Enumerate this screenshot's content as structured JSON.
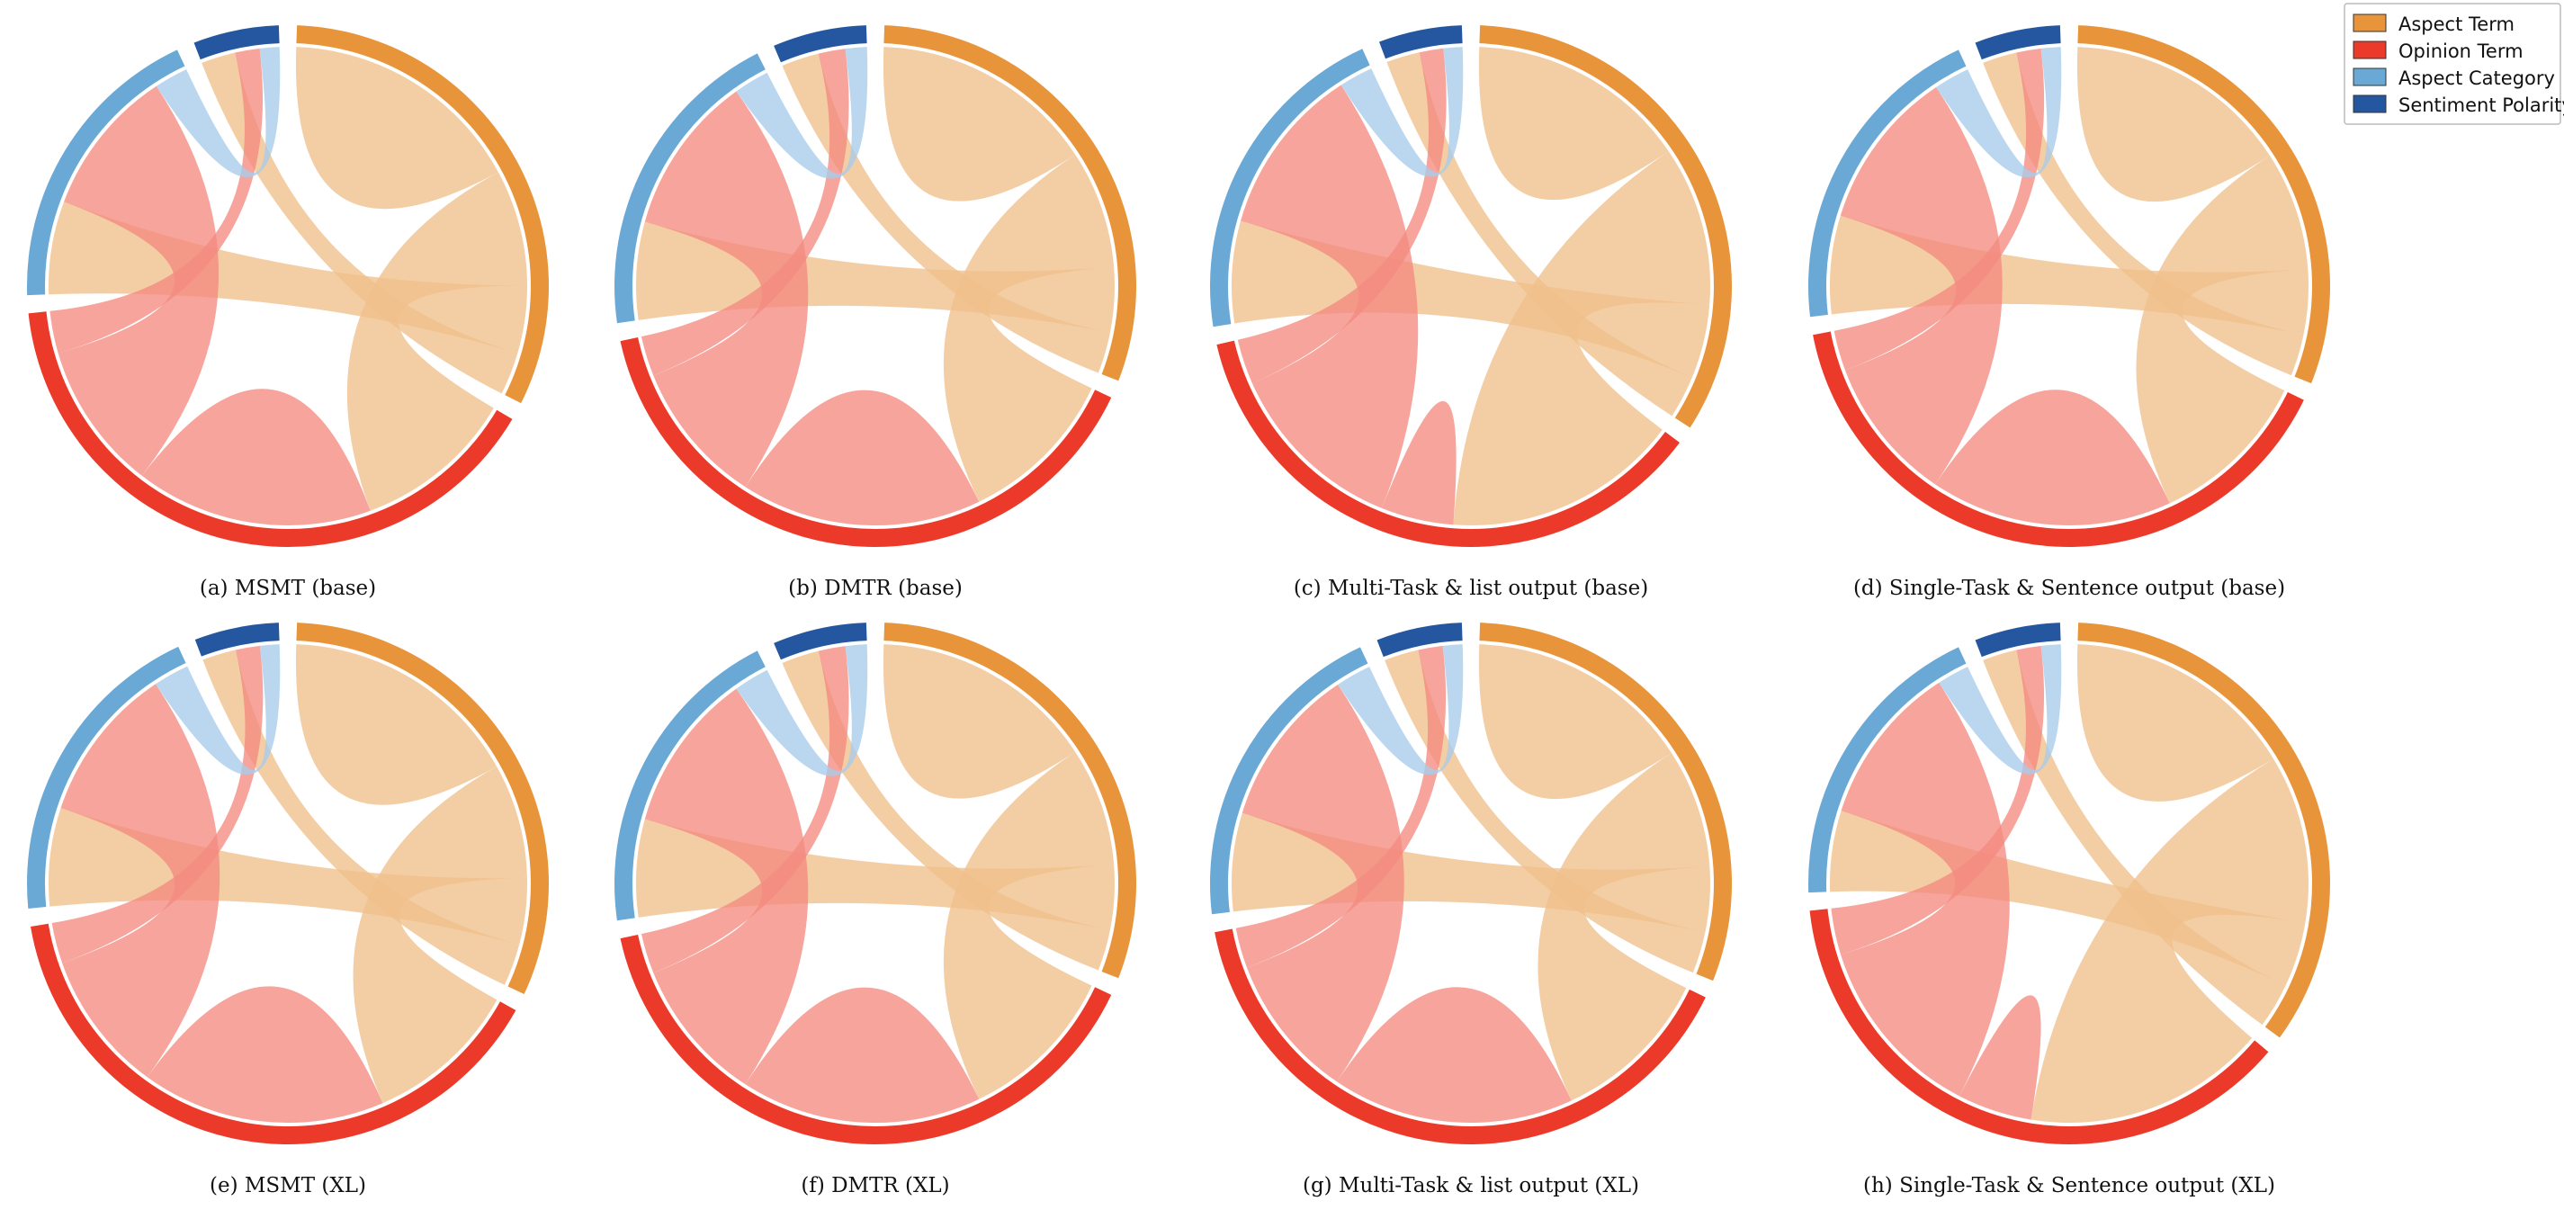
{
  "legend": [
    {
      "key": "aspect_term",
      "label": "Aspect Term",
      "arc_color": "#E8943A",
      "ribbon_color": "#F0C08C"
    },
    {
      "key": "opinion_term",
      "label": "Opinion Term",
      "arc_color": "#EC3A2A",
      "ribbon_color": "#F38A80"
    },
    {
      "key": "aspect_category",
      "label": "Aspect Category",
      "arc_color": "#6AA8D6",
      "ribbon_color": "#A8CCEA"
    },
    {
      "key": "sentiment_polarity",
      "label": "Sentiment Polarity",
      "arc_color": "#2457A0",
      "ribbon_color": "#7F9DC8"
    }
  ],
  "chart_data": [
    {
      "type": "chord",
      "caption": "(a) MSMT (base)",
      "segments": {
        "aspect_term": 120,
        "opinion_term": 150,
        "aspect_category": 70,
        "sentiment_polarity": 20
      },
      "links": [
        {
          "source": "aspect_term",
          "target": "aspect_term",
          "value": 40
        },
        {
          "source": "aspect_term",
          "target": "opinion_term",
          "value": 38
        },
        {
          "source": "aspect_term",
          "target": "aspect_category",
          "value": 22
        },
        {
          "source": "aspect_term",
          "target": "sentiment_polarity",
          "value": 14
        },
        {
          "source": "opinion_term",
          "target": "opinion_term",
          "value": 28
        },
        {
          "source": "opinion_term",
          "target": "aspect_category",
          "value": 35
        },
        {
          "source": "opinion_term",
          "target": "sentiment_polarity",
          "value": 10
        },
        {
          "source": "aspect_category",
          "target": "sentiment_polarity",
          "value": 8
        }
      ]
    },
    {
      "type": "chord",
      "caption": "(b) DMTR (base)",
      "segments": {
        "aspect_term": 115,
        "opinion_term": 150,
        "aspect_category": 75,
        "sentiment_polarity": 22
      },
      "links": [
        {
          "source": "aspect_term",
          "target": "aspect_term",
          "value": 38
        },
        {
          "source": "aspect_term",
          "target": "opinion_term",
          "value": 40
        },
        {
          "source": "aspect_term",
          "target": "aspect_category",
          "value": 22
        },
        {
          "source": "aspect_term",
          "target": "sentiment_polarity",
          "value": 14
        },
        {
          "source": "opinion_term",
          "target": "opinion_term",
          "value": 30
        },
        {
          "source": "opinion_term",
          "target": "aspect_category",
          "value": 36
        },
        {
          "source": "opinion_term",
          "target": "sentiment_polarity",
          "value": 10
        },
        {
          "source": "aspect_category",
          "target": "sentiment_polarity",
          "value": 8
        }
      ]
    },
    {
      "type": "chord",
      "caption": "(c) Multi-Task & list output (base)",
      "segments": {
        "aspect_term": 130,
        "opinion_term": 140,
        "aspect_category": 80,
        "sentiment_polarity": 20
      },
      "links": [
        {
          "source": "aspect_term",
          "target": "aspect_term",
          "value": 36
        },
        {
          "source": "aspect_term",
          "target": "opinion_term",
          "value": 52
        },
        {
          "source": "aspect_term",
          "target": "aspect_category",
          "value": 24
        },
        {
          "source": "aspect_term",
          "target": "sentiment_polarity",
          "value": 14
        },
        {
          "source": "opinion_term",
          "target": "opinion_term",
          "value": 8
        },
        {
          "source": "opinion_term",
          "target": "aspect_category",
          "value": 40
        },
        {
          "source": "opinion_term",
          "target": "sentiment_polarity",
          "value": 10
        },
        {
          "source": "aspect_category",
          "target": "sentiment_polarity",
          "value": 8
        }
      ]
    },
    {
      "type": "chord",
      "caption": "(d) Single-Task & Sentence output (base)",
      "segments": {
        "aspect_term": 115,
        "opinion_term": 150,
        "aspect_category": 75,
        "sentiment_polarity": 20
      },
      "links": [
        {
          "source": "aspect_term",
          "target": "aspect_term",
          "value": 38
        },
        {
          "source": "aspect_term",
          "target": "opinion_term",
          "value": 40
        },
        {
          "source": "aspect_term",
          "target": "aspect_category",
          "value": 22
        },
        {
          "source": "aspect_term",
          "target": "sentiment_polarity",
          "value": 14
        },
        {
          "source": "opinion_term",
          "target": "opinion_term",
          "value": 30
        },
        {
          "source": "opinion_term",
          "target": "aspect_category",
          "value": 36
        },
        {
          "source": "opinion_term",
          "target": "sentiment_polarity",
          "value": 10
        },
        {
          "source": "aspect_category",
          "target": "sentiment_polarity",
          "value": 8
        }
      ]
    },
    {
      "type": "chord",
      "caption": "(e) MSMT (XL)",
      "segments": {
        "aspect_term": 120,
        "opinion_term": 150,
        "aspect_category": 75,
        "sentiment_polarity": 20
      },
      "links": [
        {
          "source": "aspect_term",
          "target": "aspect_term",
          "value": 40
        },
        {
          "source": "aspect_term",
          "target": "opinion_term",
          "value": 38
        },
        {
          "source": "aspect_term",
          "target": "aspect_category",
          "value": 22
        },
        {
          "source": "aspect_term",
          "target": "sentiment_polarity",
          "value": 14
        },
        {
          "source": "opinion_term",
          "target": "opinion_term",
          "value": 30
        },
        {
          "source": "opinion_term",
          "target": "aspect_category",
          "value": 35
        },
        {
          "source": "opinion_term",
          "target": "sentiment_polarity",
          "value": 10
        },
        {
          "source": "aspect_category",
          "target": "sentiment_polarity",
          "value": 8
        }
      ]
    },
    {
      "type": "chord",
      "caption": "(f) DMTR (XL)",
      "segments": {
        "aspect_term": 115,
        "opinion_term": 150,
        "aspect_category": 75,
        "sentiment_polarity": 22
      },
      "links": [
        {
          "source": "aspect_term",
          "target": "aspect_term",
          "value": 38
        },
        {
          "source": "aspect_term",
          "target": "opinion_term",
          "value": 40
        },
        {
          "source": "aspect_term",
          "target": "aspect_category",
          "value": 22
        },
        {
          "source": "aspect_term",
          "target": "sentiment_polarity",
          "value": 14
        },
        {
          "source": "opinion_term",
          "target": "opinion_term",
          "value": 30
        },
        {
          "source": "opinion_term",
          "target": "aspect_category",
          "value": 36
        },
        {
          "source": "opinion_term",
          "target": "sentiment_polarity",
          "value": 10
        },
        {
          "source": "aspect_category",
          "target": "sentiment_polarity",
          "value": 8
        }
      ]
    },
    {
      "type": "chord",
      "caption": "(g) Multi-Task & list output (XL)",
      "segments": {
        "aspect_term": 115,
        "opinion_term": 150,
        "aspect_category": 75,
        "sentiment_polarity": 20
      },
      "links": [
        {
          "source": "aspect_term",
          "target": "aspect_term",
          "value": 38
        },
        {
          "source": "aspect_term",
          "target": "opinion_term",
          "value": 40
        },
        {
          "source": "aspect_term",
          "target": "aspect_category",
          "value": 22
        },
        {
          "source": "aspect_term",
          "target": "sentiment_polarity",
          "value": 14
        },
        {
          "source": "opinion_term",
          "target": "opinion_term",
          "value": 30
        },
        {
          "source": "opinion_term",
          "target": "aspect_category",
          "value": 36
        },
        {
          "source": "opinion_term",
          "target": "sentiment_polarity",
          "value": 10
        },
        {
          "source": "aspect_category",
          "target": "sentiment_polarity",
          "value": 8
        }
      ]
    },
    {
      "type": "chord",
      "caption": "(h) Single-Task & Sentence output (XL)",
      "segments": {
        "aspect_term": 130,
        "opinion_term": 140,
        "aspect_category": 70,
        "sentiment_polarity": 20
      },
      "links": [
        {
          "source": "aspect_term",
          "target": "aspect_term",
          "value": 36
        },
        {
          "source": "aspect_term",
          "target": "opinion_term",
          "value": 52
        },
        {
          "source": "aspect_term",
          "target": "aspect_category",
          "value": 20
        },
        {
          "source": "aspect_term",
          "target": "sentiment_polarity",
          "value": 14
        },
        {
          "source": "opinion_term",
          "target": "opinion_term",
          "value": 8
        },
        {
          "source": "opinion_term",
          "target": "aspect_category",
          "value": 40
        },
        {
          "source": "opinion_term",
          "target": "sentiment_polarity",
          "value": 10
        },
        {
          "source": "aspect_category",
          "target": "sentiment_polarity",
          "value": 8
        }
      ]
    }
  ]
}
